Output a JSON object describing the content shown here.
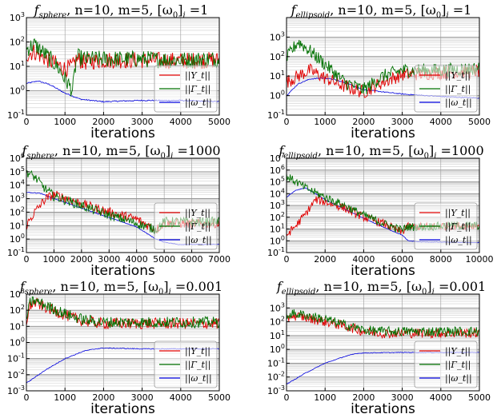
{
  "figure": {
    "colors": {
      "Y": "#e00000",
      "Gamma": "#007000",
      "omega": "#0000dd",
      "grid": "#a8a8a8"
    }
  },
  "chart_data": [
    {
      "type": "line",
      "title": "f_sphere, n=10, m=5, [ω0]_i=1",
      "title_parts": {
        "f": "f",
        "sub": "sphere",
        "rest": ", n=10, m=5, [ω",
        "sub0": "0",
        "tail": "]",
        "subi": "i",
        "eq": " =1"
      },
      "xlabel": "iterations",
      "xlim": [
        0,
        5000
      ],
      "ylim_log10": [
        -1,
        3
      ],
      "log_y": true,
      "grid": true,
      "legend_position": "right",
      "xticks": [
        0,
        1000,
        2000,
        3000,
        4000,
        5000
      ],
      "yticks": [
        "10^-1",
        "10^0",
        "10^1",
        "10^2",
        "10^3"
      ],
      "series": [
        {
          "name": "||Y_t||",
          "key": "Y",
          "x": [
            0,
            200,
            500,
            800,
            1000,
            1200,
            1300,
            1500,
            2000,
            3000,
            4000,
            5000
          ],
          "y": [
            30,
            40,
            20,
            12,
            8,
            10,
            20,
            15,
            18,
            18,
            17,
            18
          ]
        },
        {
          "name": "||Γ_t||",
          "key": "Gamma",
          "x": [
            0,
            200,
            500,
            800,
            1000,
            1200,
            1300,
            1500,
            2000,
            3000,
            4000,
            5000
          ],
          "y": [
            50,
            80,
            30,
            10,
            3,
            1,
            25,
            20,
            20,
            20,
            18,
            20
          ]
        },
        {
          "name": "||ω_t||",
          "key": "omega",
          "x": [
            0,
            300,
            600,
            1000,
            1400,
            2000,
            2500,
            3000,
            4000,
            5000
          ],
          "y": [
            2,
            2.5,
            1.8,
            0.8,
            0.45,
            0.35,
            0.38,
            0.4,
            0.4,
            0.35
          ]
        }
      ]
    },
    {
      "type": "line",
      "title": "f_ellipsoid, n=10, m=5, [ω0]_i=1",
      "title_parts": {
        "f": "f",
        "sub": "ellipsoid",
        "rest": ", n=10, m=5, [ω",
        "sub0": "0",
        "tail": "]",
        "subi": "i",
        "eq": " =1"
      },
      "xlabel": "iterations",
      "xlim": [
        0,
        5000
      ],
      "ylim_log10": [
        -1,
        4
      ],
      "log_y": true,
      "grid": true,
      "legend_position": "right",
      "xticks": [
        0,
        1000,
        2000,
        3000,
        4000,
        5000
      ],
      "yticks": [
        "10^-1",
        "10^0",
        "10^1",
        "10^2",
        "10^3"
      ],
      "series": [
        {
          "name": "||Y_t||",
          "key": "Y",
          "x": [
            0,
            300,
            600,
            1000,
            1500,
            2000,
            2500,
            3000,
            4000,
            5000
          ],
          "y": [
            5,
            10,
            20,
            8,
            3,
            1.5,
            5,
            12,
            15,
            18
          ]
        },
        {
          "name": "||Γ_t||",
          "key": "Gamma",
          "x": [
            0,
            300,
            600,
            1000,
            1500,
            2000,
            2500,
            3000,
            4000,
            5000
          ],
          "y": [
            80,
            600,
            200,
            40,
            5,
            2,
            10,
            20,
            20,
            25
          ]
        },
        {
          "name": "||ω_t||",
          "key": "omega",
          "x": [
            0,
            300,
            600,
            900,
            1200,
            1600,
            2000,
            3000,
            4000,
            5000
          ],
          "y": [
            1,
            4,
            7,
            8,
            7,
            4,
            2,
            1.2,
            0.9,
            0.75
          ]
        }
      ]
    },
    {
      "type": "line",
      "title": "f_sphere, n=10, m=5, [ω0]_i=1000",
      "title_parts": {
        "f": "f",
        "sub": "sphere",
        "rest": ", n=10, m=5, [ω",
        "sub0": "0",
        "tail": "]",
        "subi": "i",
        "eq": " =1000"
      },
      "xlabel": "iterations",
      "xlim": [
        0,
        7000
      ],
      "ylim_log10": [
        -1,
        6
      ],
      "log_y": true,
      "grid": true,
      "legend_position": "right",
      "xticks": [
        0,
        1000,
        2000,
        3000,
        4000,
        5000,
        6000,
        7000
      ],
      "yticks": [
        "10^-1",
        "10^0",
        "10^1",
        "10^2",
        "10^3",
        "10^4",
        "10^5",
        "10^6"
      ],
      "series": [
        {
          "name": "||Y_t||",
          "key": "Y",
          "x": [
            0,
            300,
            700,
            1000,
            1500,
            2000,
            3000,
            4000,
            4700,
            5000,
            5500,
            6000,
            7000
          ],
          "y": [
            10,
            100,
            1000,
            2000,
            1000,
            400,
            100,
            30,
            5,
            15,
            15,
            14,
            15
          ]
        },
        {
          "name": "||Γ_t||",
          "key": "Gamma",
          "x": [
            0,
            300,
            700,
            1000,
            2000,
            3000,
            4000,
            4700,
            5000,
            5500,
            6000,
            7000
          ],
          "y": [
            100000,
            40000,
            5000,
            1500,
            300,
            60,
            15,
            5,
            20,
            20,
            18,
            20
          ]
        },
        {
          "name": "||ω_t||",
          "key": "omega",
          "x": [
            0,
            500,
            1000,
            2000,
            3000,
            4000,
            4700,
            5000,
            5500,
            6000,
            7000
          ],
          "y": [
            3000,
            2500,
            1000,
            200,
            40,
            8,
            1,
            0.6,
            0.4,
            0.4,
            0.4
          ]
        }
      ]
    },
    {
      "type": "line",
      "title": "f_ellipsoid, n=10, m=5, [ω0]_i=1000",
      "title_parts": {
        "f": "f",
        "sub": "ellipsoid",
        "rest": ", n=10, m=5, [ω",
        "sub0": "0",
        "tail": "]",
        "subi": "i",
        "eq": " =1000"
      },
      "xlabel": "iterations",
      "xlim": [
        0,
        10000
      ],
      "ylim_log10": [
        -1,
        7
      ],
      "log_y": true,
      "grid": true,
      "legend_position": "right",
      "xticks": [
        0,
        2000,
        4000,
        6000,
        8000,
        10000
      ],
      "yticks": [
        "10^-1",
        "10^0",
        "10^1",
        "10^2",
        "10^3",
        "10^4",
        "10^5",
        "10^6",
        "10^7"
      ],
      "series": [
        {
          "name": "||Y_t||",
          "key": "Y",
          "x": [
            0,
            500,
            1000,
            1500,
            2000,
            3000,
            4000,
            5000,
            6000,
            6200,
            7000,
            8000,
            10000
          ],
          "y": [
            3,
            20,
            200,
            3000,
            2000,
            600,
            100,
            30,
            5,
            15,
            15,
            18,
            20
          ]
        },
        {
          "name": "||Γ_t||",
          "key": "Gamma",
          "x": [
            0,
            500,
            1000,
            2000,
            3000,
            4000,
            5000,
            6000,
            6200,
            7000,
            8000,
            10000
          ],
          "y": [
            300000,
            100000,
            30000,
            5000,
            1000,
            150,
            30,
            8,
            15,
            15,
            18,
            20
          ]
        },
        {
          "name": "||ω_t||",
          "key": "omega",
          "x": [
            0,
            500,
            1000,
            1500,
            2000,
            3000,
            4000,
            5000,
            6000,
            6300,
            7000,
            10000
          ],
          "y": [
            5000,
            20000,
            30000,
            10000,
            3000,
            500,
            80,
            15,
            3,
            1,
            0.8,
            0.7
          ]
        }
      ]
    },
    {
      "type": "line",
      "title": "f_sphere, n=10, m=5, [ω0]_i=0.001",
      "title_parts": {
        "f": "f",
        "sub": "sphere",
        "rest": ", n=10, m=5, [ω",
        "sub0": "0",
        "tail": "]",
        "subi": "i",
        "eq": " =0.001"
      },
      "xlabel": "iterations",
      "xlim": [
        0,
        5000
      ],
      "ylim_log10": [
        -3,
        3
      ],
      "log_y": true,
      "grid": true,
      "legend_position": "right",
      "xticks": [
        0,
        1000,
        2000,
        3000,
        4000,
        5000
      ],
      "yticks": [
        "10^-3",
        "10^-2",
        "10^-1",
        "10^0",
        "10^1",
        "10^2",
        "10^3"
      ],
      "series": [
        {
          "name": "||Y_t||",
          "key": "Y",
          "x": [
            0,
            100,
            200,
            500,
            1000,
            1500,
            2000,
            3000,
            4000,
            5000
          ],
          "y": [
            20,
            200,
            300,
            150,
            50,
            20,
            15,
            15,
            15,
            15
          ]
        },
        {
          "name": "||Γ_t||",
          "key": "Gamma",
          "x": [
            0,
            100,
            200,
            500,
            1000,
            1500,
            2000,
            3000,
            4000,
            5000
          ],
          "y": [
            30,
            300,
            400,
            200,
            60,
            25,
            18,
            18,
            18,
            18
          ]
        },
        {
          "name": "||ω_t||",
          "key": "omega",
          "x": [
            0,
            500,
            1000,
            1500,
            1800,
            2000,
            3000,
            4000,
            5000
          ],
          "y": [
            0.003,
            0.02,
            0.1,
            0.3,
            0.4,
            0.45,
            0.4,
            0.4,
            0.4
          ]
        }
      ]
    },
    {
      "type": "line",
      "title": "f_ellipsoid, n=10, m=5, [ω0]_i=0.001",
      "title_parts": {
        "f": "f",
        "sub": "ellipsoid",
        "rest": ", n=10, m=5, [ω",
        "sub0": "0",
        "tail": "]",
        "subi": "i",
        "eq": " =0.001"
      },
      "xlabel": "iterations",
      "xlim": [
        0,
        5000
      ],
      "ylim_log10": [
        -3,
        4
      ],
      "log_y": true,
      "grid": true,
      "legend_position": "right",
      "xticks": [
        0,
        1000,
        2000,
        3000,
        4000,
        5000
      ],
      "yticks": [
        "10^-3",
        "10^-2",
        "10^-1",
        "10^0",
        "10^1",
        "10^2",
        "10^3"
      ],
      "series": [
        {
          "name": "||Y_t||",
          "key": "Y",
          "x": [
            0,
            100,
            500,
            1000,
            1500,
            2000,
            2500,
            3000,
            4000,
            5000
          ],
          "y": [
            100,
            300,
            200,
            100,
            50,
            20,
            15,
            15,
            15,
            15
          ]
        },
        {
          "name": "||Γ_t||",
          "key": "Gamma",
          "x": [
            0,
            100,
            500,
            1000,
            1500,
            2000,
            2500,
            3000,
            4000,
            5000
          ],
          "y": [
            200,
            400,
            300,
            150,
            60,
            25,
            20,
            20,
            20,
            20
          ]
        },
        {
          "name": "||ω_t||",
          "key": "omega",
          "x": [
            0,
            500,
            1000,
            1500,
            1800,
            2000,
            3000,
            4000,
            5000
          ],
          "y": [
            0.003,
            0.02,
            0.1,
            0.3,
            0.5,
            0.55,
            0.6,
            0.6,
            0.6
          ]
        }
      ]
    }
  ]
}
